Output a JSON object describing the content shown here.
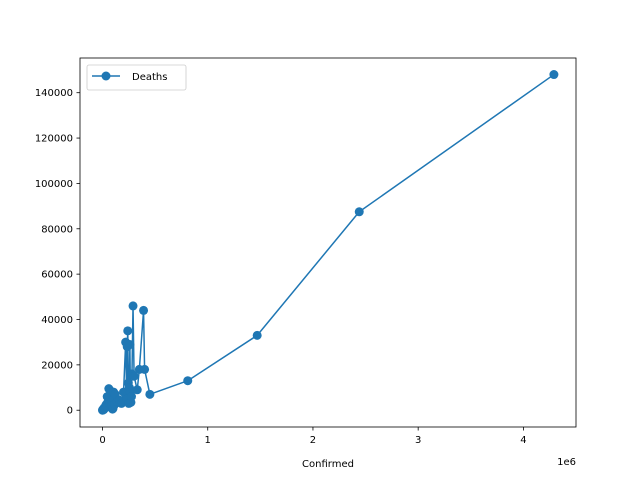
{
  "chart_data": {
    "type": "line",
    "xlabel": "Confirmed",
    "ylabel": "",
    "x_offset_label": "1e6",
    "xlim": [
      -0.214,
      4.5
    ],
    "ylim": [
      -7400,
      155300
    ],
    "x_ticks": [
      0,
      1,
      2,
      3,
      4
    ],
    "x_tick_labels": [
      "0",
      "1",
      "2",
      "3",
      "4"
    ],
    "y_ticks": [
      0,
      20000,
      40000,
      60000,
      80000,
      100000,
      120000,
      140000
    ],
    "y_tick_labels": [
      "0",
      "20000",
      "40000",
      "60000",
      "80000",
      "100000",
      "120000",
      "140000"
    ],
    "grid": false,
    "legend_position": "upper-left",
    "marker": "circle",
    "colors": {
      "series": "#1f77b4"
    },
    "series": [
      {
        "name": "Deaths",
        "x": [
          0.0,
          0.002,
          0.005,
          0.008,
          0.012,
          0.015,
          0.02,
          0.025,
          0.03,
          0.035,
          0.04,
          0.045,
          0.05,
          0.055,
          0.06,
          0.065,
          0.07,
          0.075,
          0.08,
          0.085,
          0.09,
          0.095,
          0.1,
          0.105,
          0.11,
          0.115,
          0.12,
          0.14,
          0.16,
          0.18,
          0.2,
          0.22,
          0.23,
          0.235,
          0.24,
          0.245,
          0.25,
          0.255,
          0.26,
          0.265,
          0.27,
          0.275,
          0.28,
          0.29,
          0.3,
          0.33,
          0.35,
          0.39,
          0.4,
          0.45,
          0.81,
          1.47,
          2.44,
          4.29
        ],
        "y": [
          0,
          200,
          100,
          500,
          300,
          1000,
          800,
          1500,
          1200,
          2500,
          1800,
          6000,
          3500,
          2000,
          9500,
          2800,
          3000,
          8500,
          2200,
          1500,
          4000,
          500,
          800,
          8000,
          5000,
          2500,
          7000,
          3800,
          4500,
          3000,
          8000,
          30000,
          5000,
          28000,
          35000,
          12000,
          3000,
          10000,
          29000,
          8000,
          3500,
          6000,
          16000,
          46000,
          15000,
          9000,
          18000,
          44000,
          18000,
          7000,
          13000,
          33000,
          87500,
          148000
        ]
      }
    ]
  }
}
